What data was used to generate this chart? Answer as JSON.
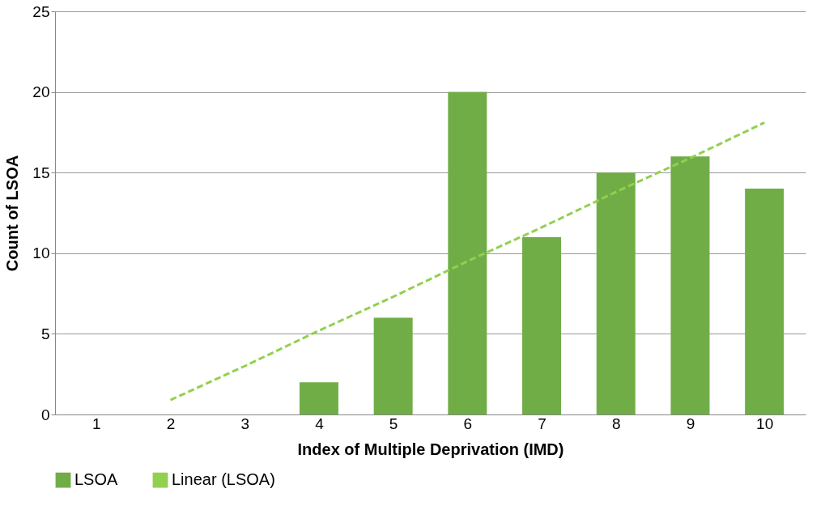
{
  "chart_data": {
    "type": "bar",
    "xlabel": "Index of Multiple Deprivation (IMD)",
    "ylabel": "Count of LSOA",
    "categories": [
      "1",
      "2",
      "3",
      "4",
      "5",
      "6",
      "7",
      "8",
      "9",
      "10"
    ],
    "series": [
      {
        "name": "LSOA",
        "color": "#70ad47",
        "values": [
          0,
          0,
          0,
          2,
          6,
          20,
          11,
          15,
          16,
          14
        ]
      },
      {
        "name": "Linear (LSOA)",
        "type": "line",
        "color": "#92d050",
        "line_style": "dashed",
        "values": [
          null,
          0.9,
          3.0,
          5.2,
          7.3,
          9.5,
          11.6,
          13.8,
          15.9,
          18.1
        ]
      }
    ],
    "ylim": [
      0,
      25
    ],
    "yticks": [
      0,
      5,
      10,
      15,
      20,
      25
    ],
    "grid": "y",
    "legend": "bottom"
  }
}
